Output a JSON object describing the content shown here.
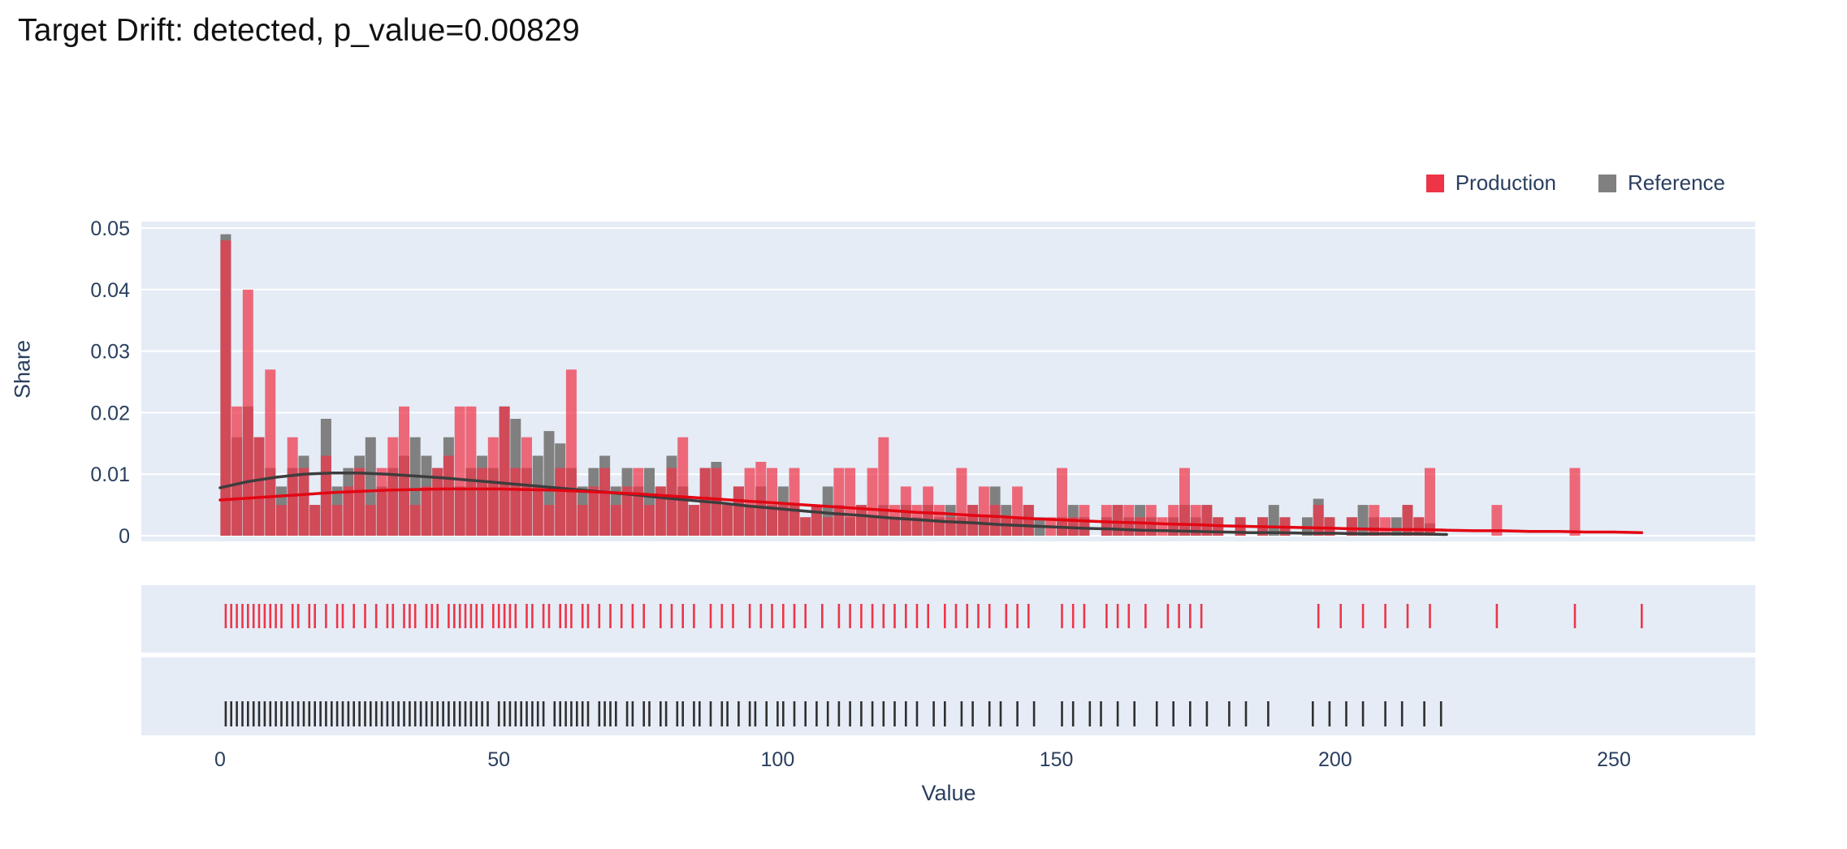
{
  "page": {
    "title": "Target Drift: detected, p_value=0.00829"
  },
  "legend": {
    "items": [
      {
        "label": "Production",
        "color": "#ee3548"
      },
      {
        "label": "Reference",
        "color": "#808080"
      }
    ]
  },
  "axes": {
    "y_label": "Share",
    "x_label": "Value",
    "y_ticks": [
      0,
      0.01,
      0.02,
      0.03,
      0.04,
      0.05
    ],
    "x_ticks": [
      0,
      50,
      100,
      150,
      200,
      250
    ]
  },
  "colors": {
    "plot_bg": "#e5ecf6",
    "gridline": "#ffffff",
    "label": "#2a3f5f",
    "title": "#111111",
    "production_bar": "#ee3548",
    "reference_bar": "#808080",
    "production_line": "#e30613",
    "reference_line": "#3d3d3d",
    "production_rug": "#ee3548",
    "reference_rug": "#2f2f2f"
  },
  "chart_data": {
    "type": "bar",
    "subtype": "overlaid-histogram-with-kde-and-rug",
    "title": "Target Drift: detected, p_value=0.00829",
    "xlabel": "Value",
    "ylabel": "Share",
    "xlim": [
      -14,
      276
    ],
    "ylim": [
      0,
      0.05
    ],
    "grid": true,
    "legend_position": "top-right",
    "bin_start": 0,
    "bin_width": 2,
    "series": [
      {
        "name": "Production",
        "type": "bar",
        "color": "#ee3548",
        "opacity": 0.72,
        "values": [
          0.048,
          0.021,
          0.04,
          0.016,
          0.027,
          0.005,
          0.016,
          0.011,
          0.005,
          0.013,
          0.005,
          0.008,
          0.011,
          0.005,
          0.011,
          0.016,
          0.021,
          0.005,
          0.008,
          0.011,
          0.013,
          0.021,
          0.021,
          0.011,
          0.016,
          0.021,
          0.011,
          0.016,
          0.008,
          0.005,
          0.011,
          0.027,
          0.005,
          0.008,
          0.011,
          0.005,
          0.008,
          0.011,
          0.005,
          0.008,
          0.011,
          0.016,
          0.005,
          0.011,
          0.011,
          0.005,
          0.008,
          0.011,
          0.012,
          0.011,
          0.005,
          0.011,
          0.003,
          0.005,
          0.003,
          0.011,
          0.011,
          0.005,
          0.011,
          0.016,
          0.005,
          0.008,
          0.005,
          0.008,
          0.005,
          0.003,
          0.011,
          0.005,
          0.008,
          0.005,
          0.003,
          0.008,
          0.005,
          0,
          0.003,
          0.011,
          0.003,
          0.005,
          0,
          0.005,
          0.005,
          0.005,
          0.003,
          0.005,
          0.003,
          0.005,
          0.011,
          0.005,
          0.005,
          0.003,
          0,
          0.003,
          0,
          0.003,
          0,
          0.003,
          0,
          0,
          0.005,
          0.003,
          0,
          0.003,
          0,
          0.005,
          0.003,
          0,
          0.005,
          0.003,
          0.011,
          0,
          0,
          0,
          0,
          0,
          0.005,
          0,
          0,
          0,
          0,
          0,
          0,
          0.011,
          0,
          0,
          0,
          0,
          0,
          0
        ]
      },
      {
        "name": "Reference",
        "type": "bar",
        "color": "#808080",
        "opacity": 1,
        "values": [
          0.049,
          0.016,
          0.021,
          0.016,
          0.011,
          0.008,
          0.011,
          0.013,
          0.005,
          0.019,
          0.008,
          0.011,
          0.013,
          0.016,
          0.008,
          0.011,
          0.013,
          0.016,
          0.013,
          0.011,
          0.016,
          0.008,
          0.011,
          0.013,
          0.011,
          0.021,
          0.019,
          0.011,
          0.013,
          0.017,
          0.015,
          0.011,
          0.008,
          0.011,
          0.013,
          0.008,
          0.011,
          0.008,
          0.011,
          0.008,
          0.013,
          0.008,
          0.005,
          0.011,
          0.012,
          0.005,
          0.008,
          0.005,
          0.008,
          0.005,
          0.008,
          0.005,
          0.003,
          0.005,
          0.008,
          0.005,
          0.003,
          0.005,
          0.003,
          0.005,
          0.003,
          0.005,
          0.003,
          0.005,
          0.003,
          0.005,
          0.003,
          0.005,
          0.003,
          0.008,
          0.005,
          0.003,
          0.005,
          0.003,
          0,
          0.003,
          0.005,
          0.003,
          0,
          0.003,
          0.005,
          0.003,
          0.005,
          0.003,
          0,
          0.003,
          0.005,
          0.003,
          0.005,
          0.003,
          0,
          0.003,
          0,
          0.003,
          0.005,
          0.003,
          0,
          0.003,
          0.006,
          0.003,
          0,
          0.003,
          0.005,
          0.003,
          0,
          0.003,
          0.005,
          0.003,
          0.002,
          0,
          0,
          0,
          0,
          0,
          0,
          0,
          0,
          0,
          0,
          0,
          0,
          0,
          0,
          0,
          0,
          0,
          0,
          0
        ]
      }
    ],
    "kde_lines": [
      {
        "name": "Reference",
        "color": "#3d3d3d",
        "points": [
          [
            0,
            0.0078
          ],
          [
            5,
            0.0088
          ],
          [
            10,
            0.0095
          ],
          [
            15,
            0.01
          ],
          [
            20,
            0.0102
          ],
          [
            25,
            0.0102
          ],
          [
            30,
            0.01
          ],
          [
            35,
            0.0097
          ],
          [
            40,
            0.0094
          ],
          [
            45,
            0.009
          ],
          [
            50,
            0.0086
          ],
          [
            55,
            0.0082
          ],
          [
            60,
            0.0078
          ],
          [
            65,
            0.0074
          ],
          [
            70,
            0.007
          ],
          [
            75,
            0.0066
          ],
          [
            80,
            0.0061
          ],
          [
            85,
            0.0057
          ],
          [
            90,
            0.0053
          ],
          [
            95,
            0.0048
          ],
          [
            100,
            0.0044
          ],
          [
            105,
            0.004
          ],
          [
            110,
            0.0036
          ],
          [
            115,
            0.0033
          ],
          [
            120,
            0.0029
          ],
          [
            125,
            0.0026
          ],
          [
            130,
            0.0023
          ],
          [
            135,
            0.0021
          ],
          [
            140,
            0.0018
          ],
          [
            145,
            0.0016
          ],
          [
            150,
            0.0014
          ],
          [
            155,
            0.0012
          ],
          [
            160,
            0.0011
          ],
          [
            165,
            0.0009
          ],
          [
            170,
            0.0008
          ],
          [
            175,
            0.0007
          ],
          [
            180,
            0.0006
          ],
          [
            185,
            0.0005
          ],
          [
            190,
            0.0005
          ],
          [
            195,
            0.0004
          ],
          [
            200,
            0.0004
          ],
          [
            205,
            0.0003
          ],
          [
            210,
            0.0003
          ],
          [
            215,
            0.0003
          ],
          [
            220,
            0.0002
          ]
        ]
      },
      {
        "name": "Production",
        "color": "#e30613",
        "points": [
          [
            0,
            0.0058
          ],
          [
            5,
            0.0061
          ],
          [
            10,
            0.0064
          ],
          [
            15,
            0.0067
          ],
          [
            20,
            0.007
          ],
          [
            25,
            0.0072
          ],
          [
            30,
            0.0074
          ],
          [
            35,
            0.0075
          ],
          [
            40,
            0.0076
          ],
          [
            45,
            0.0076
          ],
          [
            50,
            0.0076
          ],
          [
            55,
            0.0075
          ],
          [
            60,
            0.0074
          ],
          [
            65,
            0.0072
          ],
          [
            70,
            0.007
          ],
          [
            75,
            0.0068
          ],
          [
            80,
            0.0065
          ],
          [
            85,
            0.0062
          ],
          [
            90,
            0.0059
          ],
          [
            95,
            0.0056
          ],
          [
            100,
            0.0053
          ],
          [
            105,
            0.005
          ],
          [
            110,
            0.0047
          ],
          [
            115,
            0.0044
          ],
          [
            120,
            0.0041
          ],
          [
            125,
            0.0038
          ],
          [
            130,
            0.0036
          ],
          [
            135,
            0.0033
          ],
          [
            140,
            0.0031
          ],
          [
            145,
            0.0028
          ],
          [
            150,
            0.0026
          ],
          [
            155,
            0.0024
          ],
          [
            160,
            0.0022
          ],
          [
            165,
            0.0021
          ],
          [
            170,
            0.0019
          ],
          [
            175,
            0.0018
          ],
          [
            180,
            0.0016
          ],
          [
            185,
            0.0015
          ],
          [
            190,
            0.0014
          ],
          [
            195,
            0.0013
          ],
          [
            200,
            0.0012
          ],
          [
            205,
            0.0011
          ],
          [
            210,
            0.001
          ],
          [
            215,
            0.001
          ],
          [
            220,
            0.0009
          ],
          [
            225,
            0.0008
          ],
          [
            230,
            0.0008
          ],
          [
            235,
            0.0007
          ],
          [
            240,
            0.0007
          ],
          [
            245,
            0.0006
          ],
          [
            250,
            0.0006
          ],
          [
            255,
            0.0005
          ]
        ]
      }
    ],
    "rug": {
      "production": {
        "color": "#ee3548",
        "x": [
          1,
          2,
          3,
          4,
          5,
          6,
          7,
          8,
          9,
          10,
          11,
          13,
          14,
          16,
          17,
          19,
          21,
          22,
          24,
          26,
          28,
          30,
          31,
          33,
          34,
          35,
          37,
          38,
          39,
          41,
          42,
          43,
          44,
          45,
          46,
          47,
          49,
          50,
          51,
          52,
          53,
          55,
          56,
          58,
          59,
          61,
          62,
          63,
          65,
          66,
          68,
          70,
          72,
          74,
          76,
          79,
          81,
          83,
          85,
          88,
          90,
          92,
          95,
          97,
          99,
          101,
          103,
          105,
          108,
          111,
          113,
          115,
          117,
          119,
          121,
          123,
          125,
          127,
          130,
          132,
          134,
          136,
          138,
          141,
          143,
          145,
          151,
          153,
          155,
          159,
          161,
          163,
          166,
          170,
          172,
          174,
          176,
          197,
          201,
          205,
          209,
          213,
          217,
          229,
          243,
          255
        ]
      },
      "reference": {
        "color": "#2f2f2f",
        "x": [
          1,
          2,
          3,
          4,
          5,
          6,
          7,
          8,
          9,
          10,
          11,
          12,
          13,
          14,
          15,
          16,
          17,
          18,
          19,
          20,
          21,
          22,
          23,
          24,
          25,
          26,
          27,
          28,
          29,
          30,
          31,
          32,
          33,
          34,
          35,
          36,
          37,
          38,
          39,
          40,
          41,
          42,
          43,
          44,
          45,
          46,
          47,
          48,
          50,
          51,
          52,
          53,
          54,
          55,
          56,
          57,
          58,
          60,
          61,
          62,
          63,
          64,
          65,
          66,
          68,
          69,
          70,
          71,
          73,
          74,
          76,
          77,
          79,
          80,
          82,
          83,
          85,
          86,
          88,
          90,
          91,
          93,
          95,
          96,
          98,
          100,
          101,
          103,
          105,
          107,
          109,
          111,
          113,
          115,
          117,
          119,
          121,
          123,
          125,
          128,
          130,
          133,
          135,
          138,
          140,
          143,
          146,
          151,
          153,
          156,
          158,
          161,
          164,
          168,
          171,
          174,
          177,
          181,
          184,
          188,
          196,
          199,
          202,
          205,
          209,
          212,
          216,
          219
        ]
      }
    }
  }
}
